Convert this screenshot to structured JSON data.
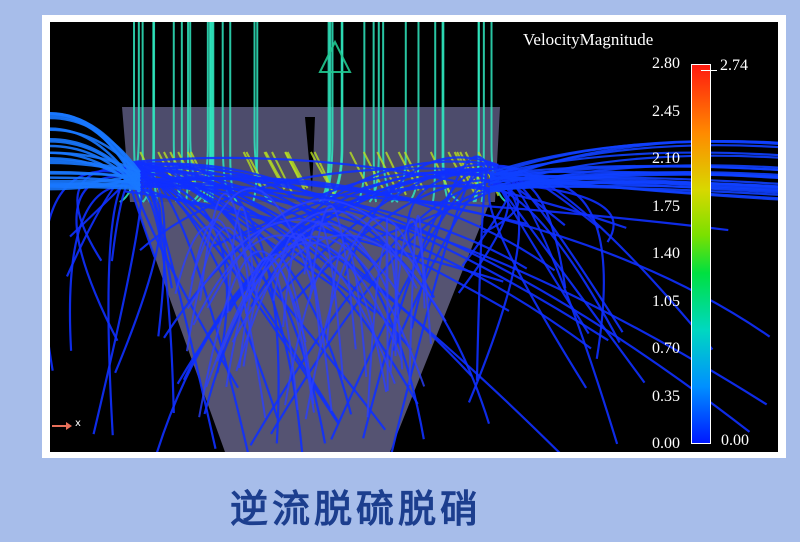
{
  "legend": {
    "title": "VelocityMagnitude",
    "ticks": [
      "2.80",
      "2.45",
      "2.10",
      "1.75",
      "1.40",
      "1.05",
      "0.70",
      "0.35",
      "0.00"
    ],
    "max_value": "2.74",
    "min_value": "0.00",
    "colormap": [
      "#0018ff",
      "#0090ff",
      "#00d8c0",
      "#00e040",
      "#7be000",
      "#d8d800",
      "#ff8a00",
      "#ff1a10"
    ]
  },
  "axis_indicator": {
    "label": "x",
    "color": "#e8705a"
  },
  "caption": "逆流脱硫脱硝",
  "colors": {
    "background": "#a7bdea",
    "caption": "#1c3e8e",
    "cone": "#8a88c8"
  }
}
